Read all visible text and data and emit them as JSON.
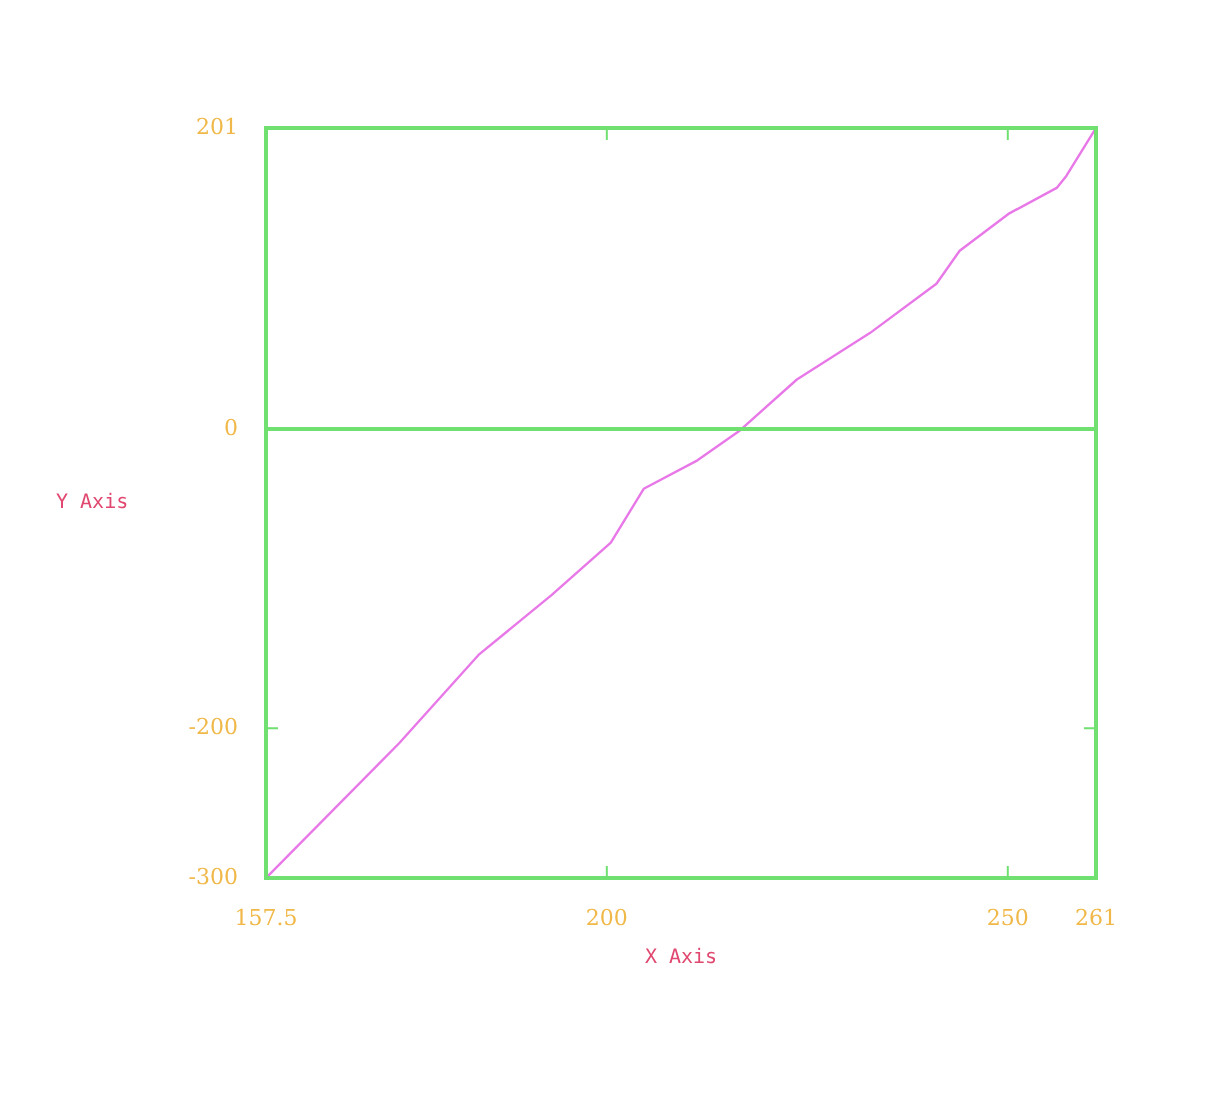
{
  "chart_data": {
    "type": "line",
    "xlabel": "X Axis",
    "ylabel": "Y Axis",
    "x": [
      157.5,
      174.1,
      184,
      193.1,
      200.5,
      204.6,
      211.3,
      216.6,
      223.7,
      232.8,
      241.1,
      244,
      250.2,
      256.1,
      257.3,
      261
    ],
    "series": [
      {
        "color": "#e878e8",
        "values": [
          -300,
          -210,
          -151,
          -111,
          -76,
          -40,
          -21,
          -1,
          33,
          64,
          97,
          119,
          144,
          161,
          169,
          201
        ]
      }
    ],
    "xlim": [
      157.5,
      261
    ],
    "xticks": [
      157.5,
      200,
      250,
      261
    ],
    "ylim": [
      -300,
      201
    ],
    "yticks": [
      -300,
      -200,
      0,
      201
    ],
    "ref_lines": [
      {
        "axis": "y",
        "value": 0,
        "color": "#70e070"
      }
    ],
    "marker": "none",
    "line_style": "solid",
    "legend": false
  }
}
